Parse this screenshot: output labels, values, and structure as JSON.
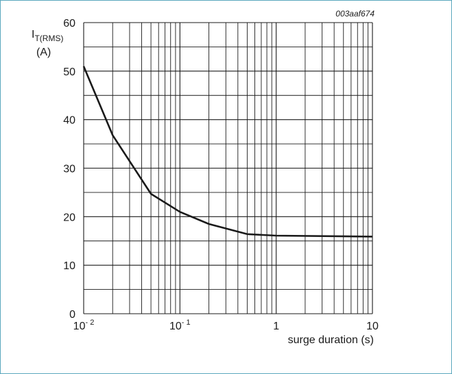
{
  "figure_id": "003aaf674",
  "chart_data": {
    "type": "line",
    "x_scale": "log",
    "xlim": [
      0.01,
      10
    ],
    "ylim": [
      0,
      60
    ],
    "grid": true,
    "ylabel": {
      "main": "I",
      "subscript": "T(RMS)",
      "unit": "(A)"
    },
    "xlabel": "surge duration (s)",
    "x_ticks": [
      {
        "value": 0.01,
        "base": "10",
        "exp": "- 2"
      },
      {
        "value": 0.1,
        "base": "10",
        "exp": "- 1"
      },
      {
        "value": 1,
        "base": "1",
        "exp": ""
      },
      {
        "value": 10,
        "base": "10",
        "exp": ""
      }
    ],
    "y_ticks": [
      {
        "value": 0,
        "label": "0"
      },
      {
        "value": 10,
        "label": "10"
      },
      {
        "value": 20,
        "label": "20"
      },
      {
        "value": 30,
        "label": "30"
      },
      {
        "value": 40,
        "label": "40"
      },
      {
        "value": 50,
        "label": "50"
      },
      {
        "value": 60,
        "label": "60"
      }
    ],
    "series": [
      {
        "x": [
          0.01,
          0.02,
          0.05,
          0.1,
          0.2,
          0.5,
          1,
          10
        ],
        "y": [
          51.0,
          36.8,
          24.7,
          21.0,
          18.5,
          16.4,
          16.1,
          15.9
        ]
      }
    ],
    "line_color": "#1a1a1a",
    "grid_color": "#1a1a1a"
  }
}
